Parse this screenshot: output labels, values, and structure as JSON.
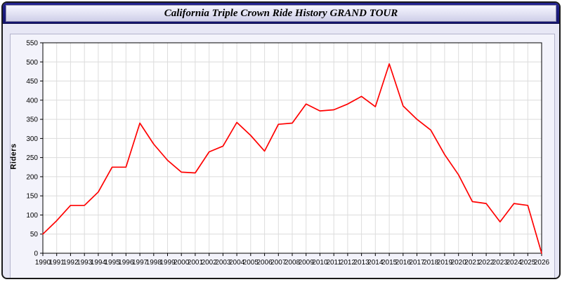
{
  "window": {
    "title": "California Triple Crown Ride History GRAND TOUR"
  },
  "colors": {
    "titlebar": "#1c1c85",
    "background": "#e7e7f5",
    "line": "#ff0000",
    "grid": "#dcdcdc",
    "axis": "#000000"
  },
  "chart_data": {
    "type": "line",
    "title": "California Triple Crown Ride History GRAND TOUR",
    "xlabel": "",
    "ylabel": "Riders",
    "ylim": [
      0,
      550
    ],
    "ytick_step": 50,
    "grid": true,
    "legend": "none",
    "line_color": "#ff0000",
    "x": [
      1990,
      1991,
      1992,
      1993,
      1994,
      1995,
      1996,
      1997,
      1998,
      1999,
      2000,
      2001,
      2002,
      2003,
      2004,
      2005,
      2006,
      2007,
      2008,
      2009,
      2010,
      2011,
      2012,
      2013,
      2014,
      2015,
      2016,
      2017,
      2018,
      2019,
      2020,
      2021,
      2022,
      2023,
      2024,
      2025,
      2026
    ],
    "values": [
      50,
      85,
      125,
      125,
      160,
      225,
      225,
      340,
      285,
      243,
      212,
      210,
      265,
      280,
      342,
      308,
      267,
      337,
      340,
      390,
      372,
      375,
      390,
      410,
      383,
      495,
      385,
      350,
      322,
      258,
      205,
      135,
      130,
      82,
      130,
      125,
      0
    ]
  }
}
